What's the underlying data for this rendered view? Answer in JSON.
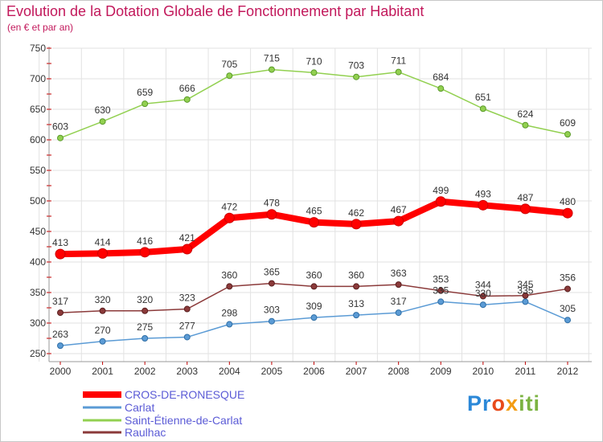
{
  "title": "Evolution de la Dotation Globale de Fonctionnement par Habitant",
  "subtitle": "(en € et par an)",
  "logo": {
    "part1": "Pr",
    "part2": "o",
    "part3": "x",
    "part4": "iti"
  },
  "chart_data": {
    "type": "line",
    "title": "Evolution de la Dotation Globale de Fonctionnement par Habitant",
    "subtitle": "(en € et par an)",
    "xlabel": "",
    "ylabel": "",
    "ylim": [
      250,
      750
    ],
    "yticks": [
      250,
      300,
      350,
      400,
      450,
      500,
      550,
      600,
      650,
      700,
      750
    ],
    "grid": true,
    "legend_position": "bottom-left",
    "categories": [
      "2000",
      "2001",
      "2002",
      "2003",
      "2004",
      "2005",
      "2006",
      "2007",
      "2008",
      "2009",
      "2010",
      "2011",
      "2012"
    ],
    "series": [
      {
        "name": "CROS-DE-RONESQUE",
        "color": "#ff0000",
        "values": [
          413,
          414,
          416,
          421,
          472,
          478,
          465,
          462,
          467,
          499,
          493,
          487,
          480
        ]
      },
      {
        "name": "Carlat",
        "color": "#5b9bd5",
        "values": [
          263,
          270,
          275,
          277,
          298,
          303,
          309,
          313,
          317,
          335,
          330,
          335,
          305
        ]
      },
      {
        "name": "Saint-Étienne-de-Carlat",
        "color": "#92d050",
        "values": [
          603,
          630,
          659,
          666,
          705,
          715,
          710,
          703,
          711,
          684,
          651,
          624,
          609
        ]
      },
      {
        "name": "Raulhac",
        "color": "#8b3a3a",
        "values": [
          317,
          320,
          320,
          323,
          360,
          365,
          360,
          360,
          363,
          353,
          344,
          345,
          356
        ]
      }
    ]
  }
}
